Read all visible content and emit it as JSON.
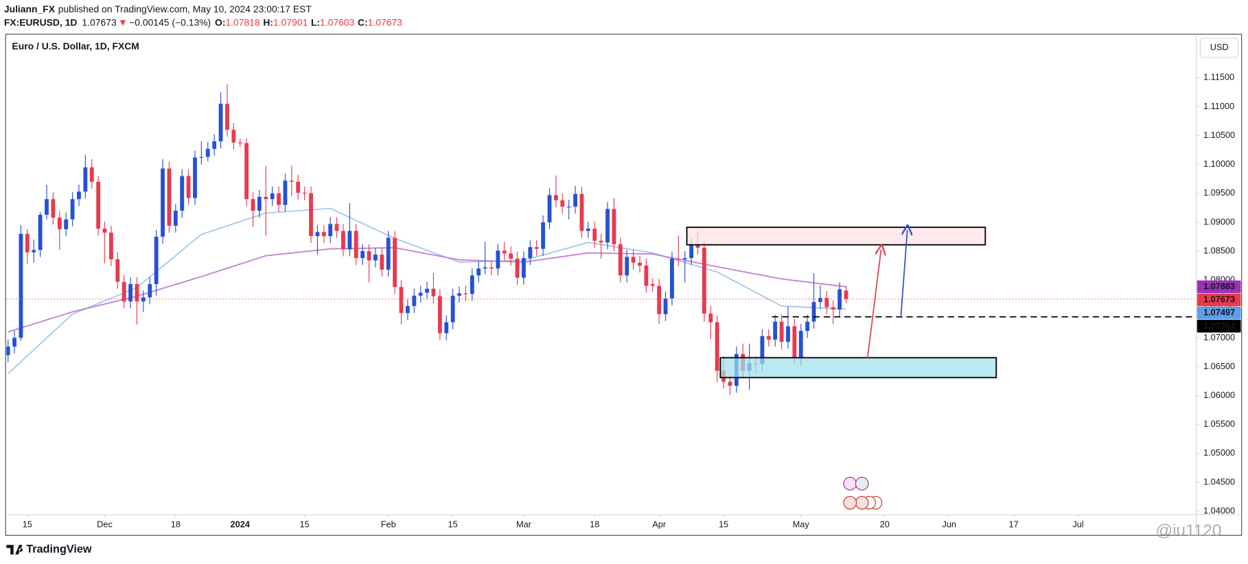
{
  "header": {
    "author": "Juliann_FX",
    "published": "published on TradingView.com, May 10, 2024 23:00:17 EST",
    "symbol": "FX:EURUSD, 1D",
    "direction_symbol": "▼",
    "change": "−0.00145 (−0.13%)",
    "ohlc_labels": [
      "O:",
      "H:",
      "L:",
      "C:"
    ]
  },
  "footer": {
    "brand": "TradingView",
    "watermark": "@iu1120"
  },
  "chart_data": {
    "type": "candlestick",
    "title": "Euro / U.S. Dollar, 1D, FXCM",
    "currency": "USD",
    "up_color": "#2451d6",
    "down_color": "#e83a4e",
    "grid": false,
    "candles": [
      [
        1.067,
        1.0697,
        1.0658,
        1.0685
      ],
      [
        1.0685,
        1.0712,
        1.0673,
        1.07
      ],
      [
        1.07,
        1.0895,
        1.0695,
        1.088
      ],
      [
        1.088,
        1.0888,
        1.0828,
        1.0848
      ],
      [
        1.0848,
        1.087,
        1.083,
        1.0852
      ],
      [
        1.0852,
        1.0918,
        1.084,
        1.0913
      ],
      [
        1.0913,
        1.0965,
        1.0905,
        1.094
      ],
      [
        1.094,
        1.0952,
        1.0896,
        1.0908
      ],
      [
        1.0908,
        1.092,
        1.0852,
        1.0888
      ],
      [
        1.0888,
        1.0917,
        1.0876,
        1.0905
      ],
      [
        1.0905,
        1.0952,
        1.0893,
        1.094
      ],
      [
        1.094,
        1.0965,
        1.0928,
        1.0953
      ],
      [
        1.0953,
        1.1017,
        1.0941,
        1.0995
      ],
      [
        1.0995,
        1.1009,
        1.0958,
        1.097
      ],
      [
        1.097,
        1.098,
        1.0877,
        1.0889
      ],
      [
        1.0889,
        1.0901,
        1.0829,
        1.0882
      ],
      [
        1.0882,
        1.0894,
        1.0824,
        1.0836
      ],
      [
        1.0836,
        1.0848,
        1.0785,
        1.0797
      ],
      [
        1.0797,
        1.0809,
        1.0751,
        1.0763
      ],
      [
        1.0763,
        1.0805,
        1.0751,
        1.0793
      ],
      [
        1.0793,
        1.0805,
        1.0723,
        1.0763
      ],
      [
        1.0763,
        1.0782,
        1.0745,
        1.077
      ],
      [
        1.077,
        1.0805,
        1.0758,
        1.0793
      ],
      [
        1.0793,
        1.0887,
        1.0773,
        1.0875
      ],
      [
        1.0875,
        1.1009,
        1.0863,
        1.0993
      ],
      [
        1.0993,
        1.1005,
        1.0882,
        1.0894
      ],
      [
        1.0894,
        1.0932,
        1.0882,
        1.092
      ],
      [
        1.092,
        1.0992,
        1.0908,
        1.098
      ],
      [
        1.098,
        1.0992,
        1.093,
        1.0942
      ],
      [
        1.0942,
        1.1024,
        1.093,
        1.1012
      ],
      [
        1.1012,
        1.104,
        1.1,
        1.1013
      ],
      [
        1.1013,
        1.1039,
        1.1005,
        1.1027
      ],
      [
        1.1027,
        1.1052,
        1.1015,
        1.104
      ],
      [
        1.104,
        1.1125,
        1.1028,
        1.1105
      ],
      [
        1.1105,
        1.1139,
        1.1048,
        1.106
      ],
      [
        1.106,
        1.1072,
        1.1026,
        1.1038
      ],
      [
        1.1038,
        1.1045,
        1.103,
        1.1037
      ],
      [
        1.1037,
        1.1045,
        1.0928,
        1.094
      ],
      [
        1.094,
        1.0952,
        1.0892,
        1.092
      ],
      [
        1.092,
        1.0956,
        1.0908,
        1.0944
      ],
      [
        1.0944,
        1.0998,
        1.0877,
        1.094
      ],
      [
        1.094,
        1.0962,
        1.0928,
        1.095
      ],
      [
        1.095,
        1.0962,
        1.0918,
        1.093
      ],
      [
        1.093,
        1.0984,
        1.0918,
        1.0972
      ],
      [
        1.0972,
        1.0998,
        1.0945,
        1.097
      ],
      [
        1.097,
        1.0982,
        1.0939,
        1.0951
      ],
      [
        1.0951,
        1.0962,
        1.0938,
        1.095
      ],
      [
        1.095,
        1.0962,
        1.0864,
        1.0876
      ],
      [
        1.0876,
        1.0895,
        1.0844,
        1.0883
      ],
      [
        1.0883,
        1.0895,
        1.0864,
        1.0876
      ],
      [
        1.0876,
        1.0909,
        1.0864,
        1.0897
      ],
      [
        1.0897,
        1.0909,
        1.0873,
        1.0885
      ],
      [
        1.0885,
        1.0897,
        1.0841,
        1.0853
      ],
      [
        1.0853,
        1.0933,
        1.0841,
        1.0885
      ],
      [
        1.0885,
        1.0897,
        1.0826,
        1.0838
      ],
      [
        1.0838,
        1.0862,
        1.0826,
        1.085
      ],
      [
        1.085,
        1.0862,
        1.0796,
        1.0834
      ],
      [
        1.0834,
        1.0856,
        1.0822,
        1.0844
      ],
      [
        1.0844,
        1.0856,
        1.0806,
        1.0818
      ],
      [
        1.0818,
        1.0885,
        1.0806,
        1.0873
      ],
      [
        1.0873,
        1.0885,
        1.0776,
        1.0788
      ],
      [
        1.0788,
        1.08,
        1.0723,
        1.0743
      ],
      [
        1.0743,
        1.0767,
        1.0731,
        1.0755
      ],
      [
        1.0755,
        1.0785,
        1.0743,
        1.0773
      ],
      [
        1.0773,
        1.079,
        1.0761,
        1.0778
      ],
      [
        1.0778,
        1.0797,
        1.0766,
        1.0785
      ],
      [
        1.0785,
        1.0812,
        1.076,
        1.0772
      ],
      [
        1.0772,
        1.0784,
        1.0696,
        1.0708
      ],
      [
        1.0708,
        1.0739,
        1.0696,
        1.0727
      ],
      [
        1.0727,
        1.0785,
        1.0715,
        1.0773
      ],
      [
        1.0773,
        1.0789,
        1.0761,
        1.0777
      ],
      [
        1.0777,
        1.079,
        1.0764,
        1.0776
      ],
      [
        1.0776,
        1.082,
        1.0764,
        1.0808
      ],
      [
        1.0808,
        1.0832,
        1.0796,
        1.082
      ],
      [
        1.082,
        1.0866,
        1.081,
        1.0822
      ],
      [
        1.0822,
        1.0834,
        1.0808,
        1.082
      ],
      [
        1.082,
        1.0863,
        1.0808,
        1.0851
      ],
      [
        1.0851,
        1.0866,
        1.0834,
        1.0846
      ],
      [
        1.0846,
        1.0858,
        1.0825,
        1.0837
      ],
      [
        1.0837,
        1.0849,
        1.0792,
        1.0804
      ],
      [
        1.0804,
        1.085,
        1.0792,
        1.0838
      ],
      [
        1.0838,
        1.0869,
        1.0826,
        1.0857
      ],
      [
        1.0857,
        1.0869,
        1.0842,
        1.0854
      ],
      [
        1.0854,
        1.0912,
        1.0842,
        1.09
      ],
      [
        1.09,
        1.0959,
        1.0888,
        1.0947
      ],
      [
        1.0947,
        1.0981,
        1.0926,
        1.0938
      ],
      [
        1.0938,
        1.095,
        1.0915,
        1.0927
      ],
      [
        1.0927,
        1.0939,
        1.0905,
        1.0927
      ],
      [
        1.0927,
        1.0963,
        1.0915,
        1.0949
      ],
      [
        1.0949,
        1.0961,
        1.0873,
        1.0885
      ],
      [
        1.0885,
        1.0901,
        1.0873,
        1.0889
      ],
      [
        1.0889,
        1.0901,
        1.0856,
        1.0868
      ],
      [
        1.0868,
        1.088,
        1.0837,
        1.0865
      ],
      [
        1.0865,
        1.0935,
        1.0853,
        1.0923
      ],
      [
        1.0923,
        1.0942,
        1.085,
        1.0862
      ],
      [
        1.0862,
        1.0874,
        1.0796,
        1.0808
      ],
      [
        1.0808,
        1.0852,
        1.0796,
        1.084
      ],
      [
        1.084,
        1.0852,
        1.0818,
        1.083
      ],
      [
        1.083,
        1.0842,
        1.0813,
        1.0825
      ],
      [
        1.0825,
        1.0837,
        1.0778,
        1.079
      ],
      [
        1.0793,
        1.0803,
        1.078,
        1.079
      ],
      [
        1.079,
        1.0802,
        1.0724,
        1.0741
      ],
      [
        1.0741,
        1.078,
        1.0729,
        1.0768
      ],
      [
        1.0768,
        1.0849,
        1.0756,
        1.0837
      ],
      [
        1.0837,
        1.0877,
        1.0824,
        1.0836
      ],
      [
        1.0836,
        1.085,
        1.0796,
        1.0838
      ],
      [
        1.0838,
        1.0872,
        1.0826,
        1.086
      ],
      [
        1.086,
        1.0885,
        1.0844,
        1.0856
      ],
      [
        1.0856,
        1.0868,
        1.0728,
        1.0742
      ],
      [
        1.0742,
        1.0755,
        1.0698,
        1.0727
      ],
      [
        1.0727,
        1.0739,
        1.0623,
        1.0643
      ],
      [
        1.0643,
        1.0668,
        1.0612,
        1.0624
      ],
      [
        1.0624,
        1.0636,
        1.0601,
        1.0617
      ],
      [
        1.0617,
        1.0685,
        1.0605,
        1.0672
      ],
      [
        1.0672,
        1.069,
        1.0631,
        1.0643
      ],
      [
        1.0643,
        1.069,
        1.061,
        1.0656
      ],
      [
        1.0656,
        1.0668,
        1.064,
        1.0655
      ],
      [
        1.0655,
        1.0715,
        1.0643,
        1.0703
      ],
      [
        1.0703,
        1.0715,
        1.0685,
        1.0697
      ],
      [
        1.0697,
        1.074,
        1.0685,
        1.0728
      ],
      [
        1.0728,
        1.074,
        1.068,
        1.0693
      ],
      [
        1.0693,
        1.0754,
        1.0681,
        1.072
      ],
      [
        1.072,
        1.0733,
        1.0654,
        1.0666
      ],
      [
        1.0666,
        1.0724,
        1.065,
        1.0712
      ],
      [
        1.0712,
        1.074,
        1.07,
        1.0728
      ],
      [
        1.0728,
        1.0812,
        1.0716,
        1.0762
      ],
      [
        1.0762,
        1.0791,
        1.075,
        1.0769
      ],
      [
        1.0769,
        1.0781,
        1.0741,
        1.0753
      ],
      [
        1.0753,
        1.0765,
        1.0724,
        1.0749
      ],
      [
        1.0749,
        1.0796,
        1.0737,
        1.0784
      ],
      [
        1.07818,
        1.07901,
        1.07603,
        1.07673
      ]
    ],
    "series": [
      {
        "color": "#a6c8ea",
        "label_color": "#5e9ee6",
        "x": [
          0,
          10,
          20,
          30,
          40,
          50,
          60,
          70,
          80,
          90,
          100,
          110,
          120,
          130
        ],
        "values": [
          1.0638,
          1.0741,
          1.0787,
          1.0879,
          1.0916,
          1.0924,
          1.0872,
          1.0831,
          1.0834,
          1.0865,
          1.0847,
          1.0814,
          1.0755,
          1.07497
        ]
      },
      {
        "color": "#c37fd3",
        "label_color": "#9c32b8",
        "x": [
          0,
          10,
          20,
          30,
          40,
          50,
          60,
          70,
          80,
          90,
          100,
          110,
          120,
          130
        ],
        "values": [
          1.071,
          1.0745,
          1.0772,
          1.0806,
          1.0842,
          1.0854,
          1.0856,
          1.0835,
          1.0831,
          1.0847,
          1.0845,
          1.0823,
          1.0802,
          1.07883
        ]
      }
    ],
    "level": {
      "value": 1.07364,
      "start": 118.5,
      "color": "#000000"
    },
    "zones": [
      {
        "top": 1.08913,
        "bottom": 1.0861,
        "start": 105.3,
        "end": 151.6,
        "color": "#fde1e4"
      },
      {
        "top": 1.06656,
        "bottom": 1.06312,
        "start": 110.5,
        "end": 153.3,
        "color": "#9fe1ea"
      }
    ],
    "xlim": [
      -0.25,
      184.32
    ],
    "ylim": [
      1.0394,
      1.1224
    ],
    "xticks": [
      {
        "value": 3,
        "label": "15"
      },
      {
        "value": 15,
        "label": "Dec"
      },
      {
        "value": 26,
        "label": "18"
      },
      {
        "value": 36,
        "label": "2024"
      },
      {
        "value": 46,
        "label": "15"
      },
      {
        "value": 59,
        "label": "Feb"
      },
      {
        "value": 69,
        "label": "15"
      },
      {
        "value": 80,
        "label": "Mar"
      },
      {
        "value": 91,
        "label": "18"
      },
      {
        "value": 101,
        "label": "Apr"
      },
      {
        "value": 111,
        "label": "15"
      },
      {
        "value": 123,
        "label": "May"
      },
      {
        "value": 136,
        "label": "20"
      },
      {
        "value": 146,
        "label": "Jun"
      },
      {
        "value": 156,
        "label": "17"
      },
      {
        "value": 166,
        "label": "Jul"
      }
    ],
    "yticks": [
      {
        "value": 1.04,
        "label": "1.04000"
      },
      {
        "value": 1.045,
        "label": "1.04500"
      },
      {
        "value": 1.05,
        "label": "1.05000"
      },
      {
        "value": 1.055,
        "label": "1.05500"
      },
      {
        "value": 1.06,
        "label": "1.06000"
      },
      {
        "value": 1.065,
        "label": "1.06500"
      },
      {
        "value": 1.07,
        "label": "1.07000"
      },
      {
        "value": 1.075,
        "label": "1.07500"
      },
      {
        "value": 1.08,
        "label": "1.08000"
      },
      {
        "value": 1.085,
        "label": "1.08500"
      },
      {
        "value": 1.09,
        "label": "1.09000"
      },
      {
        "value": 1.095,
        "label": "1.09500"
      },
      {
        "value": 1.1,
        "label": "1.10000"
      },
      {
        "value": 1.105,
        "label": "1.10500"
      },
      {
        "value": 1.11,
        "label": "1.11000"
      },
      {
        "value": 1.115,
        "label": "1.11500"
      }
    ]
  }
}
